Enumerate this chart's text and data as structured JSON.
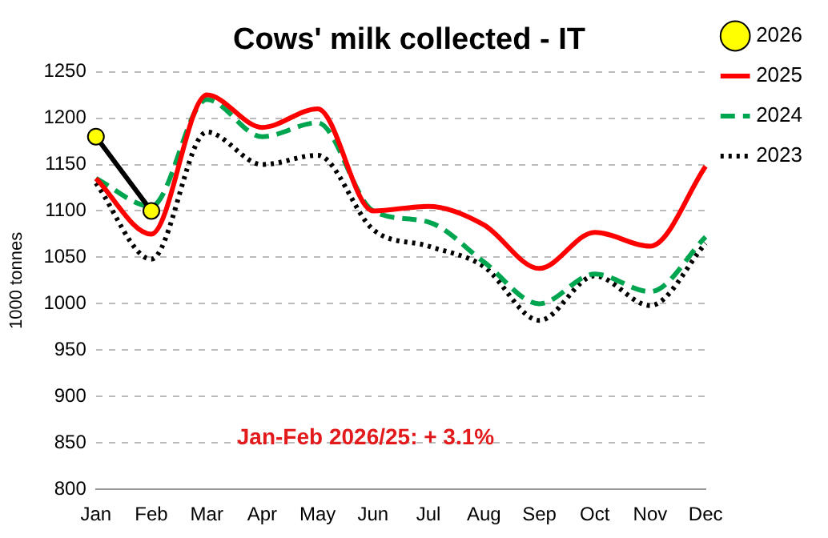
{
  "chart_data": {
    "type": "line",
    "title": "Cows' milk collected - IT",
    "ylabel": "1000 tonnes",
    "categories": [
      "Jan",
      "Feb",
      "Mar",
      "Apr",
      "May",
      "Jun",
      "Jul",
      "Aug",
      "Sep",
      "Oct",
      "Nov",
      "Dec"
    ],
    "series": [
      {
        "name": "2026",
        "color": "#000000",
        "marker": "circle",
        "line_style": "solid",
        "values": [
          1180,
          1100,
          null,
          null,
          null,
          null,
          null,
          null,
          null,
          null,
          null,
          null
        ]
      },
      {
        "name": "2025",
        "color": "#ff0000",
        "marker": "none",
        "line_style": "solid",
        "values": [
          1135,
          1075,
          1225,
          1190,
          1210,
          1100,
          1105,
          1085,
          1038,
          1077,
          1062,
          1148
        ]
      },
      {
        "name": "2024",
        "color": "#00a550",
        "marker": "none",
        "line_style": "dashed",
        "values": [
          1135,
          1105,
          1220,
          1180,
          1195,
          1100,
          1088,
          1045,
          1000,
          1032,
          1013,
          1072
        ]
      },
      {
        "name": "2023",
        "color": "#000000",
        "marker": "none",
        "line_style": "dotted",
        "values": [
          1130,
          1048,
          1185,
          1150,
          1160,
          1080,
          1062,
          1040,
          982,
          1030,
          998,
          1065
        ]
      }
    ],
    "ylim": [
      800,
      1250
    ],
    "yticks": [
      800,
      850,
      900,
      950,
      1000,
      1050,
      1100,
      1150,
      1200,
      1250
    ],
    "grid": "y",
    "legend": "top right",
    "annotations": [
      "Jan-Feb 2026/25: + 3.1%"
    ]
  }
}
